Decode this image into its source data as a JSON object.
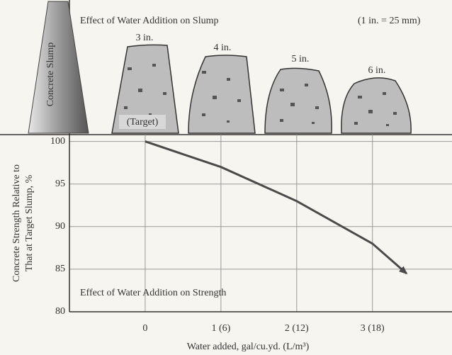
{
  "slump_panel": {
    "title": "Effect of Water Addition on Slump",
    "scale_note": "(1 in. = 25 mm)",
    "cone_label": "Concrete Slump",
    "slump_labels": [
      "3 in.",
      "4 in.",
      "5 in.",
      "6 in."
    ],
    "target_label": "(Target)"
  },
  "chart_data": {
    "type": "line",
    "annotation": "Effect of Water Addition on Strength",
    "ylabel": [
      "Concrete Strength Relative to",
      "That at Target Slump, %"
    ],
    "xlabel": "Water added, gal/cu.yd. (L/m³)",
    "x": [
      0,
      1,
      2,
      3,
      3.45
    ],
    "values": [
      100,
      97,
      93,
      88,
      84.5
    ],
    "color": "#4a4a4a",
    "xlim": [
      -1,
      4.05
    ],
    "xticks": [
      0,
      {
        "value": 1,
        "label": "1 (6)"
      },
      {
        "value": 2,
        "label": "2 (12)"
      },
      {
        "value": 3,
        "label": "3 (18)"
      }
    ],
    "ylim": [
      80,
      100.8
    ],
    "yticks": [
      80,
      85,
      90,
      95,
      100
    ],
    "grid": true
  }
}
